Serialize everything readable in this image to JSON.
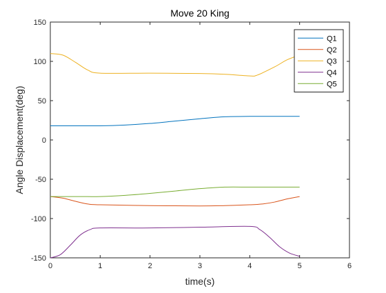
{
  "chart_data": {
    "type": "line",
    "title": "Move 20 King",
    "xlabel": "time(s)",
    "ylabel": "Angle Displacement(deg)",
    "xlim": [
      0,
      6
    ],
    "ylim": [
      -150,
      150
    ],
    "xticks": [
      0,
      1,
      2,
      3,
      4,
      5,
      6
    ],
    "yticks": [
      -150,
      -100,
      -50,
      0,
      50,
      100,
      150
    ],
    "grid": false,
    "legend_position": "top-right",
    "series": [
      {
        "name": "Q1",
        "color": "#0072BD",
        "points": [
          [
            0,
            18
          ],
          [
            0.5,
            18
          ],
          [
            1,
            18
          ],
          [
            1.5,
            19
          ],
          [
            2,
            21
          ],
          [
            2.5,
            24
          ],
          [
            3,
            27
          ],
          [
            3.5,
            29.5
          ],
          [
            4,
            30
          ],
          [
            4.5,
            30
          ],
          [
            5,
            30
          ]
        ]
      },
      {
        "name": "Q2",
        "color": "#D95319",
        "points": [
          [
            0,
            -72
          ],
          [
            0.25,
            -74
          ],
          [
            0.5,
            -78
          ],
          [
            0.75,
            -81.5
          ],
          [
            1,
            -82.5
          ],
          [
            2,
            -83.5
          ],
          [
            3,
            -84
          ],
          [
            3.5,
            -83.5
          ],
          [
            4,
            -82.5
          ],
          [
            4.25,
            -81.5
          ],
          [
            4.5,
            -79
          ],
          [
            4.75,
            -75
          ],
          [
            5,
            -72
          ]
        ]
      },
      {
        "name": "Q3",
        "color": "#EDB120",
        "points": [
          [
            0,
            110
          ],
          [
            0.25,
            108
          ],
          [
            0.5,
            99
          ],
          [
            0.75,
            89
          ],
          [
            1,
            85
          ],
          [
            2,
            85
          ],
          [
            3,
            84.5
          ],
          [
            3.5,
            83.5
          ],
          [
            4,
            81.5
          ],
          [
            4.15,
            82.5
          ],
          [
            4.5,
            93
          ],
          [
            4.75,
            102
          ],
          [
            5,
            108
          ]
        ]
      },
      {
        "name": "Q4",
        "color": "#7E2F8E",
        "points": [
          [
            0,
            -150
          ],
          [
            0.2,
            -146
          ],
          [
            0.4,
            -134
          ],
          [
            0.6,
            -121
          ],
          [
            0.8,
            -114
          ],
          [
            1,
            -112
          ],
          [
            2,
            -112
          ],
          [
            3,
            -111
          ],
          [
            4,
            -110
          ],
          [
            4.2,
            -114
          ],
          [
            4.4,
            -124
          ],
          [
            4.6,
            -136
          ],
          [
            4.8,
            -144
          ],
          [
            5,
            -148
          ]
        ]
      },
      {
        "name": "Q5",
        "color": "#77AC30",
        "points": [
          [
            0,
            -72
          ],
          [
            0.5,
            -72
          ],
          [
            1,
            -72
          ],
          [
            1.5,
            -70.5
          ],
          [
            2,
            -68
          ],
          [
            2.5,
            -65
          ],
          [
            3,
            -62
          ],
          [
            3.5,
            -60
          ],
          [
            4,
            -60
          ],
          [
            4.5,
            -60
          ],
          [
            5,
            -60
          ]
        ]
      }
    ]
  }
}
